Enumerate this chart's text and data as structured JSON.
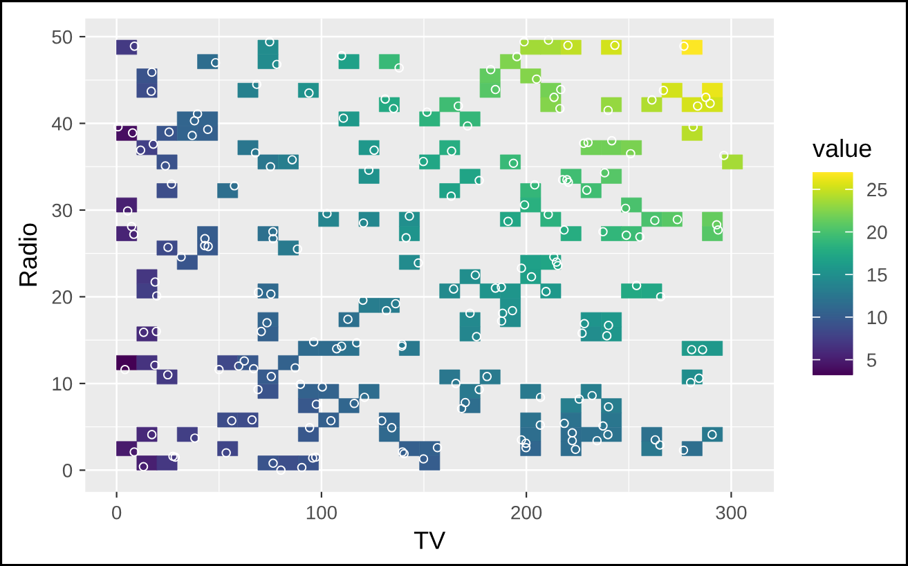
{
  "chart_data": {
    "type": "scatter",
    "xlabel": "TV",
    "ylabel": "Radio",
    "clabel": "value",
    "xlim": [
      -15.3,
      320.8
    ],
    "xticks": [
      0,
      100,
      200,
      300
    ],
    "ylim": [
      -2.5,
      52.1
    ],
    "yticks": [
      0,
      10,
      20,
      30,
      40,
      50
    ],
    "clim": [
      3.2,
      27.0
    ],
    "cticks": [
      5,
      10,
      15,
      20,
      25
    ],
    "grid": true,
    "series": [
      {
        "type": "scatter",
        "marker": "square",
        "x": [
          4.9,
          73.9,
          202.1,
          211.9,
          221.8,
          241.5,
          280.9,
          44.4,
          73.9,
          113.4,
          133.1,
          192.2,
          14.8,
          182.3,
          202.1,
          14.8,
          64.1,
          93.6,
          182.3,
          211.9,
          271.1,
          290.8,
          133.1,
          162.6,
          211.9,
          241.5,
          261.2,
          280.9,
          290.8,
          34.5,
          44.4,
          113.4,
          152.8,
          172.5,
          4.9,
          24.6,
          34.5,
          44.4,
          280.9,
          14.8,
          64.1,
          123.2,
          162.6,
          231.6,
          241.5,
          251.3,
          24.6,
          73.9,
          83.8,
          152.8,
          192.2,
          300.6,
          123.2,
          172.5,
          221.8,
          241.5,
          24.6,
          54.2,
          162.6,
          202.1,
          231.6,
          4.9,
          202.1,
          251.3,
          103.5,
          123.2,
          142.9,
          192.2,
          211.9,
          261.2,
          271.1,
          290.8,
          4.9,
          44.4,
          73.9,
          142.9,
          221.8,
          241.5,
          251.3,
          290.8,
          24.6,
          44.4,
          83.8,
          34.5,
          142.9,
          202.1,
          211.9,
          14.8,
          172.5,
          202.1,
          14.8,
          73.9,
          162.6,
          182.3,
          192.2,
          211.9,
          251.3,
          261.2,
          123.2,
          133.1,
          192.2,
          73.9,
          113.4,
          172.5,
          192.2,
          231.6,
          241.5,
          14.8,
          73.9,
          172.5,
          231.6,
          241.5,
          93.6,
          103.5,
          113.4,
          142.9,
          280.9,
          290.8,
          4.9,
          14.8,
          54.2,
          64.1,
          83.8,
          24.6,
          73.9,
          162.6,
          182.3,
          280.9,
          73.9,
          93.6,
          103.5,
          123.2,
          172.5,
          202.1,
          231.6,
          93.6,
          113.4,
          172.5,
          221.8,
          241.5,
          54.2,
          64.1,
          103.5,
          133.1,
          202.1,
          221.8,
          241.5,
          14.8,
          34.5,
          93.6,
          133.1,
          202.1,
          221.8,
          231.6,
          241.5,
          261.2,
          290.8,
          4.9,
          54.2,
          142.9,
          152.8,
          202.1,
          221.8,
          261.2,
          280.9,
          14.8,
          24.6,
          73.9,
          83.8,
          93.6,
          152.8
        ],
        "values": [
          48.77,
          48.77,
          48.77,
          48.77,
          48.77,
          48.77,
          48.77,
          47.12,
          47.12,
          47.12,
          47.12,
          47.12,
          45.47,
          45.47,
          45.47,
          43.81,
          43.81,
          43.81,
          43.81,
          43.81,
          43.81,
          43.81,
          42.16,
          42.16,
          42.16,
          42.16,
          42.16,
          42.16,
          42.16,
          40.51,
          40.51,
          40.51,
          40.51,
          40.51,
          38.85,
          38.85,
          38.85,
          38.85,
          38.85,
          37.2,
          37.2,
          37.2,
          37.2,
          37.2,
          37.2,
          37.2,
          35.55,
          35.55,
          35.55,
          35.55,
          35.55,
          35.55,
          33.89,
          33.89,
          33.89,
          33.89,
          32.24,
          32.24,
          32.24,
          32.24,
          32.24,
          30.59,
          30.59,
          30.59,
          28.93,
          28.93,
          28.93,
          28.93,
          28.93,
          28.93,
          28.93,
          28.93,
          27.28,
          27.28,
          27.28,
          27.28,
          27.28,
          27.28,
          27.28,
          27.28,
          25.63,
          25.63,
          25.63,
          23.97,
          23.97,
          23.97,
          23.97,
          22.32,
          22.32,
          22.32,
          20.67,
          20.67,
          20.67,
          20.67,
          20.67,
          20.67,
          20.67,
          20.67,
          19.01,
          19.01,
          19.01,
          17.36,
          17.36,
          17.36,
          17.36,
          17.36,
          17.36,
          15.71,
          15.71,
          15.71,
          15.71,
          15.71,
          14.05,
          14.05,
          14.05,
          14.05,
          14.05,
          14.05,
          12.4,
          12.4,
          12.4,
          12.4,
          12.4,
          10.75,
          10.75,
          10.75,
          10.75,
          10.75,
          9.09,
          9.09,
          9.09,
          9.09,
          9.09,
          9.09,
          9.09,
          7.44,
          7.44,
          7.44,
          7.44,
          7.44,
          5.79,
          5.79,
          5.79,
          5.79,
          5.79,
          5.79,
          5.79,
          4.13,
          4.13,
          4.13,
          4.13,
          4.13,
          4.13,
          4.13,
          4.13,
          4.13,
          4.13,
          2.48,
          2.48,
          2.48,
          2.48,
          2.48,
          2.48,
          2.48,
          2.48,
          0.83,
          0.83,
          0.83,
          0.83,
          0.83,
          0.83
        ],
        "cvalues": [
          7.2,
          14.7,
          23.7,
          23.8,
          24.7,
          25.4,
          27.0,
          11.6,
          14.6,
          16.7,
          19.2,
          22.4,
          9.3,
          21.2,
          22.6,
          8.7,
          13.6,
          15.3,
          20.7,
          22.0,
          25.4,
          26.2,
          17.6,
          19.6,
          22.6,
          23.2,
          24.2,
          25.5,
          25.4,
          10.9,
          10.8,
          16.0,
          18.5,
          19.0,
          4.1,
          9.5,
          10.8,
          10.4,
          24.4,
          7.7,
          12.5,
          15.9,
          18.0,
          21.8,
          21.8,
          22.2,
          9.2,
          12.6,
          13.3,
          17.3,
          19.2,
          23.8,
          15.2,
          17.1,
          19.7,
          20.7,
          8.8,
          11.8,
          16.9,
          19.0,
          19.7,
          5.3,
          18.3,
          20.2,
          14.0,
          14.2,
          15.0,
          17.3,
          18.4,
          20.2,
          20.8,
          21.4,
          5.6,
          10.1,
          11.9,
          15.5,
          18.0,
          18.9,
          19.4,
          20.7,
          8.5,
          9.8,
          12.9,
          9.5,
          14.6,
          16.6,
          17.2,
          7.0,
          14.9,
          16.6,
          7.6,
          11.3,
          14.5,
          15.5,
          15.6,
          15.9,
          17.6,
          17.4,
          13.2,
          13.1,
          15.2,
          10.9,
          11.9,
          14.4,
          14.8,
          15.5,
          15.9,
          6.1,
          10.5,
          14.1,
          14.8,
          15.7,
          11.4,
          11.5,
          12.2,
          12.8,
          16.1,
          15.9,
          3.2,
          6.7,
          8.4,
          9.7,
          10.6,
          7.2,
          9.9,
          12.6,
          12.9,
          14.9,
          9.3,
          10.6,
          10.7,
          11.6,
          12.8,
          12.9,
          13.4,
          9.7,
          11.0,
          11.7,
          13.4,
          13.2,
          8.7,
          8.6,
          10.4,
          11.0,
          12.2,
          12.2,
          12.5,
          5.9,
          7.6,
          9.7,
          11.2,
          11.7,
          11.6,
          11.9,
          12.3,
          12.0,
          12.8,
          4.8,
          8.1,
          10.3,
          10.5,
          11.0,
          11.6,
          12.7,
          11.8,
          5.3,
          7.1,
          9.4,
          8.8,
          9.3,
          10.1
        ],
        "colors": [
          "#443a83",
          "#228c8d",
          "#a2da37",
          "#a5db36",
          "#c0df25",
          "#d2e21b",
          "#fde725",
          "#2e6d8e",
          "#228b8d",
          "#1fa188",
          "#38b977",
          "#7fd34e",
          "#3a538b",
          "#60ca60",
          "#84d44b",
          "#3d4d8a",
          "#26818e",
          "#20928c",
          "#56c667",
          "#75d054",
          "#d2e21b",
          "#eae51a",
          "#23a983",
          "#3fbc73",
          "#84d44b",
          "#95d840",
          "#b0dd2f",
          "#d5e21a",
          "#d2e21b",
          "#32658e",
          "#32648e",
          "#1f998a",
          "#2db27d",
          "#34b679",
          "#470e61",
          "#39558c",
          "#32648e",
          "#34608d",
          "#b8de29",
          "#424086",
          "#2a768e",
          "#1f988b",
          "#27ad81",
          "#70cf57",
          "#70cf57",
          "#7ad151",
          "#3b528b",
          "#2a778e",
          "#277e8e",
          "#21a685",
          "#38b977",
          "#a5db36",
          "#20928c",
          "#20a486",
          "#40bd72",
          "#56c667",
          "#3d4e8a",
          "#2e6f8e",
          "#1fa287",
          "#34b679",
          "#40bd72",
          "#482071",
          "#2ab07f",
          "#4ac16d",
          "#25858e",
          "#24878e",
          "#218f8d",
          "#21a685",
          "#2cb17e",
          "#4ac16d",
          "#58c765",
          "#65cb5e",
          "#482475",
          "#365d8d",
          "#2d708e",
          "#1f948c",
          "#27ad81",
          "#32b67a",
          "#3bbb75",
          "#56c667",
          "#3e4a89",
          "#38598c",
          "#297a8e",
          "#39558c",
          "#228b8d",
          "#1fa088",
          "#21a585",
          "#453781",
          "#218e8d",
          "#1fa088",
          "#423f85",
          "#306a8e",
          "#238a8d",
          "#1f948c",
          "#1f958b",
          "#1f988b",
          "#23a983",
          "#22a785",
          "#287d8e",
          "#287c8e",
          "#20928c",
          "#32658e",
          "#2d708e",
          "#23898e",
          "#228d8d",
          "#1f948c",
          "#1f988b",
          "#472c7a",
          "#34618d",
          "#24868e",
          "#228d8d",
          "#1f968b",
          "#2f6b8e",
          "#2f6c8e",
          "#2c728e",
          "#29798e",
          "#1f9a8a",
          "#1f988b",
          "#440154",
          "#46337f",
          "#3f4889",
          "#38588c",
          "#33628d",
          "#443a83",
          "#375b8d",
          "#2a778e",
          "#297a8e",
          "#218e8d",
          "#3a538b",
          "#33628d",
          "#33638d",
          "#2e6d8e",
          "#29798e",
          "#297a8e",
          "#277f8e",
          "#38588c",
          "#31668e",
          "#2e6e8e",
          "#277f8e",
          "#287d8e",
          "#3d4d8a",
          "#3e4c8a",
          "#34608d",
          "#31668e",
          "#2c728e",
          "#2c728e",
          "#2a768e",
          "#482979",
          "#423f85",
          "#38588c",
          "#30698e",
          "#2e6e8e",
          "#2e6d8e",
          "#2d708e",
          "#2c738e",
          "#2d718e",
          "#29798e",
          "#481a6c",
          "#404588",
          "#355f8d",
          "#34618d",
          "#31668e",
          "#2e6d8e",
          "#2a788e",
          "#2e6f8e",
          "#482071",
          "#453882",
          "#3a548c",
          "#3d4e8a",
          "#3a538b",
          "#365d8d"
        ]
      },
      {
        "type": "scatter",
        "marker": "circle",
        "color": "#ffffff",
        "x": [
          230.1,
          44.5,
          17.2,
          151.5,
          180.8,
          8.7,
          57.5,
          120.2,
          8.6,
          199.8,
          66.1,
          214.7,
          23.8,
          97.5,
          204.1,
          195.4,
          67.8,
          281.4,
          69.2,
          147.3,
          218.4,
          237.4,
          13.2,
          228.3,
          62.3,
          262.9,
          142.9,
          240.1,
          248.8,
          70.6,
          292.9,
          112.9,
          97.2,
          265.6,
          95.7,
          290.7,
          266.9,
          74.7,
          43.1,
          228,
          202.5,
          177,
          293.6,
          206.9,
          25.1,
          175.1,
          89.7,
          239.9,
          227.2,
          66.9,
          199.8,
          100.4,
          216.4,
          182.6,
          262.7,
          198.9,
          7.3,
          136.2,
          210.8,
          210.7,
          53.5,
          261.3,
          239.3,
          102.7,
          131.1,
          69,
          31.5,
          139.3,
          237.4,
          216.8,
          199.1,
          109.8,
          26.8,
          129.4,
          213.4,
          16.9,
          27.5,
          120.5,
          5.4,
          116,
          76.4,
          239.8,
          75.3,
          68.4,
          213.5,
          193.2,
          76.3,
          110.7,
          88.3,
          109.8,
          134.3,
          28.6,
          217.7,
          250.9,
          107.4,
          163.3,
          197.6,
          184.9,
          289.7,
          135.2,
          222.4,
          296.4,
          280.2,
          187.9,
          238.2,
          137.9,
          25,
          90.4,
          13.1,
          255.4,
          225.8,
          241.7,
          175.7,
          209.6,
          78.2,
          75.1,
          139.2,
          76.4,
          125.7,
          19.4,
          141.3,
          18.8,
          224,
          123.1,
          229.5,
          87.2,
          7.8,
          80.2,
          220.3,
          59.6,
          0.7,
          265.2,
          8.4,
          219.8,
          36.9,
          48.3,
          25.6,
          273.7,
          43,
          184.9,
          73.4,
          193.7,
          220.5,
          104.6,
          96.2,
          140.3,
          240.1,
          243.2,
          38,
          44.7,
          280.7,
          121,
          197.6,
          171.3,
          187.8,
          4.1,
          93.9,
          149.8,
          11.7,
          131.7,
          172.5,
          85.7,
          188.4,
          163.5,
          117.2,
          234.5,
          17.9,
          206.8,
          215.4,
          284.3,
          50,
          164.5,
          19.6,
          168.4,
          222.4,
          276.9,
          248.4,
          170.2,
          276.7,
          165.6,
          156.6,
          218.5,
          56.2,
          287.6,
          253.8,
          205,
          139.5,
          191.1,
          286,
          18.7,
          39.5,
          75.5,
          17.2,
          166.8,
          149.7,
          38.2,
          94.2,
          177,
          283.6,
          232.1
        ],
        "values": [
          37.8,
          39.3,
          45.9,
          41.3,
          10.8,
          48.9,
          32.8,
          19.6,
          2.1,
          2.6,
          5.8,
          24,
          35.1,
          7.6,
          32.9,
          47.7,
          36.6,
          39.6,
          20.5,
          23.9,
          27.7,
          5.1,
          15.9,
          16.9,
          12.6,
          3.5,
          29.3,
          16.7,
          27.1,
          16,
          28.3,
          17.4,
          1.5,
          20,
          1.4,
          4.1,
          43.8,
          49.4,
          26.7,
          37.7,
          22.3,
          33.4,
          27.7,
          8.4,
          25.7,
          22.5,
          9.9,
          41.5,
          15.8,
          11.7,
          3.1,
          9.6,
          41.7,
          46.2,
          28.8,
          49.4,
          28.1,
          19.2,
          49.6,
          29.5,
          2,
          42.7,
          15.5,
          29.6,
          42.8,
          9.3,
          24.6,
          14.5,
          27.5,
          43.9,
          30.6,
          14.3,
          33,
          5.7,
          24.6,
          43.7,
          1.6,
          28.5,
          29.9,
          7.7,
          26.7,
          4.1,
          20.3,
          44.5,
          43,
          18.4,
          27.5,
          40.6,
          25.5,
          47.8,
          4.9,
          1.5,
          33.5,
          36.5,
          14,
          31.6,
          3.5,
          21,
          42.3,
          41.7,
          4.3,
          36.3,
          10.1,
          17.2,
          34.3,
          46.4,
          11,
          0.3,
          0.4,
          26.9,
          8.2,
          38,
          15.4,
          20.6,
          46.8,
          35,
          14.3,
          0.8,
          36.9,
          16,
          26.8,
          21.7,
          2.4,
          34.6,
          32.3,
          11.8,
          38.9,
          0,
          49,
          12,
          39.6,
          2.9,
          27.2,
          33.5,
          38.6,
          47,
          39,
          28.9,
          25.9,
          43.9,
          17,
          35.4,
          33.2,
          5.7,
          14.8,
          1.9,
          7.3,
          49,
          40.3,
          25.8,
          13.9,
          8.4,
          23.3,
          39.7,
          21.1,
          11.6,
          43.5,
          1.3,
          36.9,
          18.4,
          18.1,
          35.8,
          18.1,
          36.8,
          14.7,
          3.4,
          37.6,
          5.2,
          23.6,
          10.6,
          11.6,
          20.9,
          20.1,
          7.1,
          3.4,
          48.9,
          30.2,
          7.8,
          2.3,
          10,
          2.6,
          5.4,
          5.7,
          43,
          21.3,
          45.1,
          2.1,
          28.7,
          13.9,
          12.1,
          41.1,
          10.8,
          4.1,
          42,
          35.6,
          3.7,
          4.9,
          9.3,
          42,
          8.6
        ]
      }
    ]
  }
}
